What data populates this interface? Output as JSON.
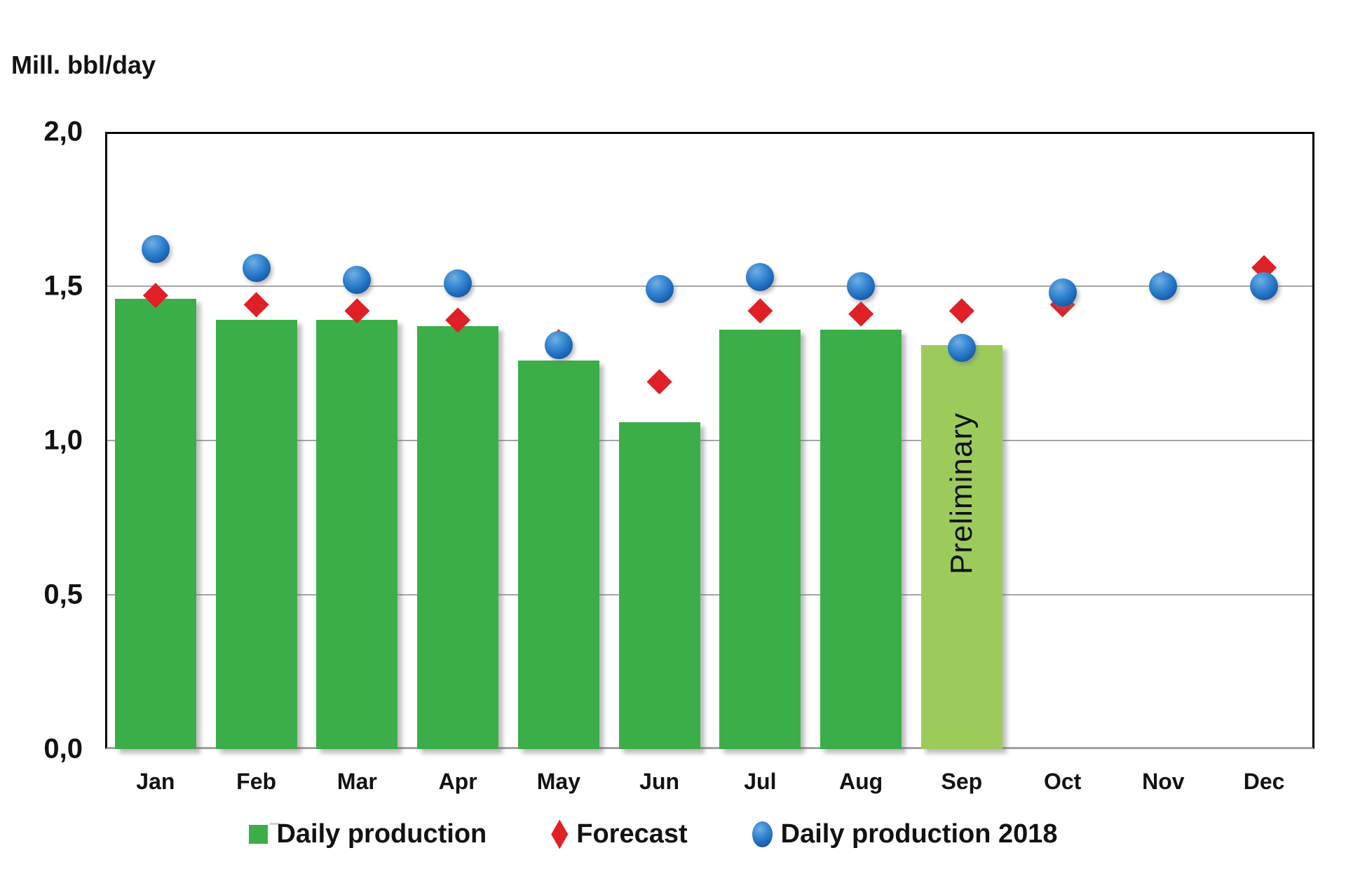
{
  "axis_title": "Mill. bbl/day",
  "preliminary_label": "Preliminary",
  "legend": {
    "daily_production": "Daily production",
    "forecast": "Forecast",
    "daily_production_2018": "Daily production 2018"
  },
  "colors": {
    "bar_green": "#3cae49",
    "bar_preliminary_green": "#9ccb5c",
    "forecast_red": "#df2026",
    "production_2018_blue": "#1d68b8",
    "gridline_gray": "#a6a6a6",
    "frame_black": "#000000"
  },
  "chart_data": {
    "type": "bar",
    "title": "",
    "ylabel": "Mill. bbl/day",
    "xlabel": "",
    "ylim": [
      0,
      2
    ],
    "grid": true,
    "legend_position": "bottom",
    "categories": [
      "Jan",
      "Feb",
      "Mar",
      "Apr",
      "May",
      "Jun",
      "Jul",
      "Aug",
      "Sep",
      "Oct",
      "Nov",
      "Dec"
    ],
    "y_ticks": [
      {
        "value": 0.0,
        "label": "0,0"
      },
      {
        "value": 0.5,
        "label": "0,5"
      },
      {
        "value": 1.0,
        "label": "1,0"
      },
      {
        "value": 1.5,
        "label": "1,5"
      },
      {
        "value": 2.0,
        "label": "2,0"
      }
    ],
    "series": [
      {
        "name": "Daily production",
        "type": "bar",
        "preliminary_index": 8,
        "values": [
          1.46,
          1.39,
          1.39,
          1.37,
          1.26,
          1.06,
          1.36,
          1.36,
          1.31,
          null,
          null,
          null
        ]
      },
      {
        "name": "Forecast",
        "type": "scatter-diamond",
        "values": [
          1.47,
          1.44,
          1.42,
          1.39,
          1.32,
          1.19,
          1.42,
          1.41,
          1.42,
          1.44,
          1.51,
          1.56
        ]
      },
      {
        "name": "Daily production 2018",
        "type": "scatter-circle",
        "values": [
          1.62,
          1.56,
          1.52,
          1.51,
          1.31,
          1.49,
          1.53,
          1.5,
          1.3,
          1.48,
          1.5,
          1.5
        ]
      }
    ]
  }
}
